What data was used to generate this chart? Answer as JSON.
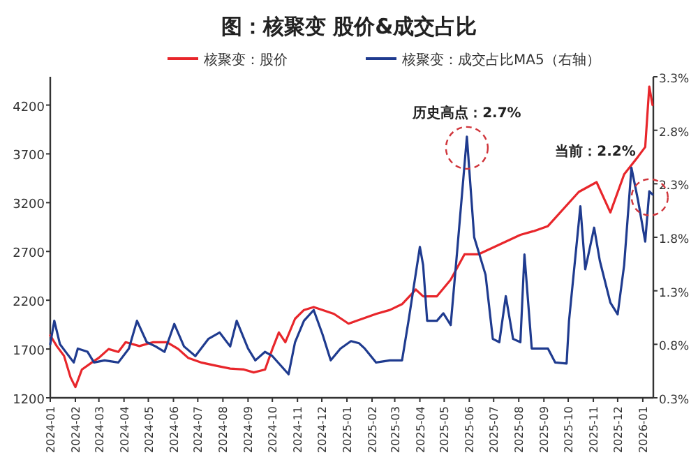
{
  "chart_data": {
    "type": "line",
    "title": "图：核聚变 股价&成交占比",
    "legend": "top",
    "grid": false,
    "marker": "none",
    "line_style": "solid",
    "xlim": [
      "2024-01-01",
      "2026-01-14"
    ],
    "xticks": [
      {
        "value": "2024-01-01",
        "label": "2024-01"
      },
      {
        "value": "2024-02-01",
        "label": "2024-02"
      },
      {
        "value": "2024-03-01",
        "label": "2024-03"
      },
      {
        "value": "2024-04-01",
        "label": "2024-04"
      },
      {
        "value": "2024-05-01",
        "label": "2024-05"
      },
      {
        "value": "2024-06-01",
        "label": "2024-06"
      },
      {
        "value": "2024-07-01",
        "label": "2024-07"
      },
      {
        "value": "2024-08-01",
        "label": "2024-08"
      },
      {
        "value": "2024-09-01",
        "label": "2024-09"
      },
      {
        "value": "2024-10-01",
        "label": "2024-10"
      },
      {
        "value": "2024-11-01",
        "label": "2024-11"
      },
      {
        "value": "2024-12-01",
        "label": "2024-12"
      },
      {
        "value": "2025-01-01",
        "label": "2025-01"
      },
      {
        "value": "2025-02-01",
        "label": "2025-02"
      },
      {
        "value": "2025-03-01",
        "label": "2025-03"
      },
      {
        "value": "2025-04-01",
        "label": "2025-04"
      },
      {
        "value": "2025-05-01",
        "label": "2025-05"
      },
      {
        "value": "2025-06-01",
        "label": "2025-06"
      },
      {
        "value": "2025-07-01",
        "label": "2025-07"
      },
      {
        "value": "2025-08-01",
        "label": "2025-08"
      },
      {
        "value": "2025-09-01",
        "label": "2025-09"
      },
      {
        "value": "2025-10-01",
        "label": "2025-10"
      },
      {
        "value": "2025-11-01",
        "label": "2025-11"
      },
      {
        "value": "2025-12-01",
        "label": "2025-12"
      },
      {
        "value": "2026-01-01",
        "label": "2026-01"
      }
    ],
    "ylim": [
      1200,
      4490
    ],
    "yticks": [
      1200,
      1700,
      2200,
      2700,
      3200,
      3700,
      4200
    ],
    "y2lim": [
      0.3,
      3.3
    ],
    "y2ticks": [
      {
        "value": 0.3,
        "label": "0.3%"
      },
      {
        "value": 0.8,
        "label": "0.8%"
      },
      {
        "value": 1.3,
        "label": "1.3%"
      },
      {
        "value": 1.8,
        "label": "1.8%"
      },
      {
        "value": 2.3,
        "label": "2.3%"
      },
      {
        "value": 2.8,
        "label": "2.8%"
      },
      {
        "value": 3.3,
        "label": "3.3%"
      }
    ],
    "series": [
      {
        "name": "核聚变：股价",
        "color": "#e8262b",
        "x": [
          "2024-01-01",
          "2024-01-09",
          "2024-01-18",
          "2024-01-26",
          "2024-02-01",
          "2024-02-09",
          "2024-02-21",
          "2024-03-01",
          "2024-03-13",
          "2024-03-25",
          "2024-04-03",
          "2024-04-20",
          "2024-05-07",
          "2024-05-24",
          "2024-06-07",
          "2024-06-19",
          "2024-07-06",
          "2024-07-23",
          "2024-08-10",
          "2024-08-27",
          "2024-09-08",
          "2024-09-22",
          "2024-10-01",
          "2024-10-09",
          "2024-10-17",
          "2024-10-29",
          "2024-11-09",
          "2024-11-21",
          "2024-12-02",
          "2024-12-16",
          "2025-01-03",
          "2025-01-20",
          "2025-02-06",
          "2025-02-23",
          "2025-03-10",
          "2025-03-27",
          "2025-04-05",
          "2025-04-22",
          "2025-05-09",
          "2025-05-26",
          "2025-06-12",
          "2025-07-08",
          "2025-08-03",
          "2025-08-20",
          "2025-09-06",
          "2025-10-14",
          "2025-11-05",
          "2025-11-22",
          "2025-12-09",
          "2025-12-26",
          "2026-01-04",
          "2026-01-09",
          "2026-01-13"
        ],
        "values": [
          1840,
          1730,
          1630,
          1410,
          1310,
          1490,
          1560,
          1610,
          1700,
          1670,
          1770,
          1730,
          1770,
          1770,
          1700,
          1610,
          1560,
          1530,
          1500,
          1490,
          1460,
          1490,
          1700,
          1870,
          1770,
          2010,
          2100,
          2130,
          2100,
          2060,
          1960,
          2010,
          2060,
          2100,
          2160,
          2310,
          2240,
          2240,
          2410,
          2670,
          2670,
          2770,
          2870,
          2910,
          2960,
          3310,
          3410,
          3100,
          3490,
          3670,
          3770,
          4390,
          4200
        ]
      },
      {
        "name": "核聚变：成交占比MA5（右轴）",
        "color": "#1f3b8f",
        "axis": "y2",
        "x": [
          "2024-01-01",
          "2024-01-06",
          "2024-01-13",
          "2024-01-21",
          "2024-01-30",
          "2024-02-04",
          "2024-02-16",
          "2024-02-24",
          "2024-03-08",
          "2024-03-25",
          "2024-04-07",
          "2024-04-17",
          "2024-04-29",
          "2024-05-10",
          "2024-05-21",
          "2024-06-02",
          "2024-06-14",
          "2024-06-28",
          "2024-07-14",
          "2024-07-28",
          "2024-08-10",
          "2024-08-18",
          "2024-09-01",
          "2024-09-10",
          "2024-09-22",
          "2024-10-01",
          "2024-10-21",
          "2024-10-29",
          "2024-11-09",
          "2024-11-21",
          "2024-12-02",
          "2024-12-12",
          "2024-12-24",
          "2025-01-06",
          "2025-01-16",
          "2025-01-23",
          "2025-02-06",
          "2025-02-23",
          "2025-03-10",
          "2025-03-18",
          "2025-04-01",
          "2025-04-05",
          "2025-04-10",
          "2025-04-22",
          "2025-04-30",
          "2025-05-09",
          "2025-05-17",
          "2025-05-29",
          "2025-06-07",
          "2025-06-21",
          "2025-06-30",
          "2025-07-08",
          "2025-07-16",
          "2025-07-25",
          "2025-08-03",
          "2025-08-08",
          "2025-08-17",
          "2025-09-06",
          "2025-09-15",
          "2025-09-29",
          "2025-10-02",
          "2025-10-16",
          "2025-10-22",
          "2025-11-02",
          "2025-11-09",
          "2025-11-22",
          "2025-12-01",
          "2025-12-09",
          "2025-12-18",
          "2025-12-26",
          "2026-01-04",
          "2026-01-09",
          "2026-01-13"
        ],
        "values": [
          0.8,
          1.02,
          0.8,
          0.72,
          0.63,
          0.76,
          0.73,
          0.63,
          0.65,
          0.63,
          0.76,
          1.02,
          0.82,
          0.78,
          0.73,
          0.99,
          0.78,
          0.69,
          0.85,
          0.91,
          0.78,
          1.02,
          0.76,
          0.65,
          0.73,
          0.69,
          0.52,
          0.82,
          1.02,
          1.12,
          0.89,
          0.65,
          0.76,
          0.83,
          0.81,
          0.76,
          0.63,
          0.65,
          0.65,
          1.02,
          1.71,
          1.54,
          1.02,
          1.02,
          1.09,
          0.98,
          1.67,
          2.74,
          1.8,
          1.45,
          0.85,
          0.82,
          1.25,
          0.85,
          0.82,
          1.64,
          0.76,
          0.76,
          0.63,
          0.62,
          1.02,
          2.09,
          1.5,
          1.89,
          1.58,
          1.19,
          1.08,
          1.54,
          2.45,
          2.15,
          1.76,
          2.23,
          2.2
        ]
      }
    ],
    "annotations": [
      "历史高点：2.7%",
      "当前：2.2%"
    ]
  }
}
